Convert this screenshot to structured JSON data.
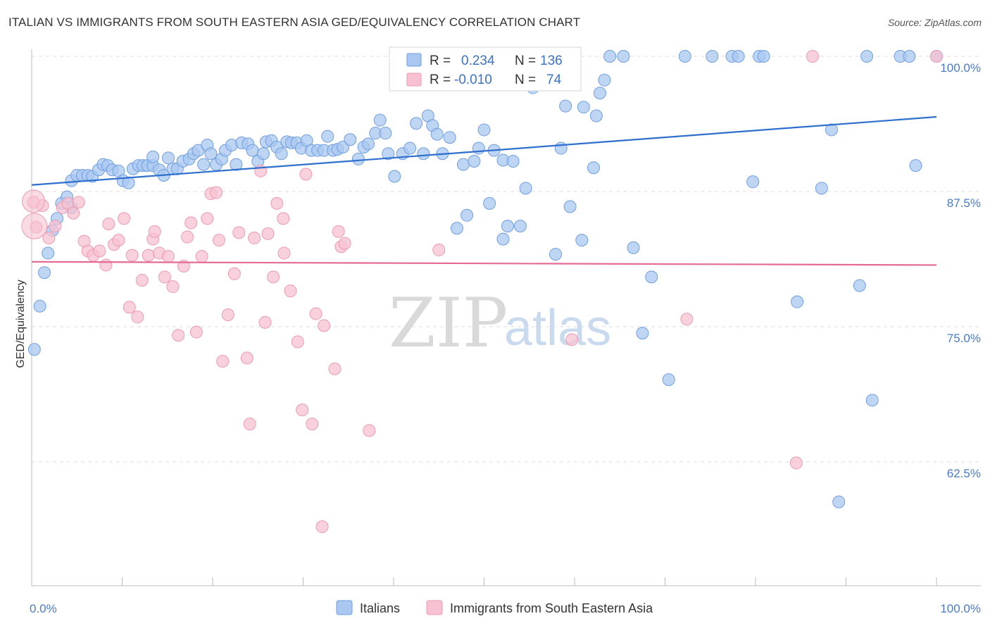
{
  "title": "ITALIAN VS IMMIGRANTS FROM SOUTH EASTERN ASIA GED/EQUIVALENCY CORRELATION CHART",
  "source": "Source: ZipAtlas.com",
  "watermark": {
    "zip": "ZIP",
    "atlas": "atlas"
  },
  "colors": {
    "italians_fill": "#a9c7f0",
    "italians_stroke": "#6f9fe0",
    "italians_line": "#2f6fce",
    "sea_fill": "#f7c1d1",
    "sea_stroke": "#ec9ab3",
    "sea_line": "#e56b95",
    "grid": "#dddddd",
    "axis_label": "#4a7cc7"
  },
  "legend_box": {
    "rows": [
      {
        "r_label": "R =",
        "r_value": "0.234",
        "n_label": "N =",
        "n_value": "136"
      },
      {
        "r_label": "R =",
        "r_value": "-0.010",
        "n_label": "N =",
        "n_value": "74"
      }
    ]
  },
  "chart_data": {
    "type": "scatter",
    "title": "ITALIAN VS IMMIGRANTS FROM SOUTH EASTERN ASIA GED/EQUIVALENCY CORRELATION CHART",
    "xlabel": "",
    "ylabel": "GED/Equivalency",
    "xlim": [
      0,
      100
    ],
    "ylim": [
      50,
      101.5
    ],
    "x_tick_labels": [
      "0.0%",
      "100.0%"
    ],
    "y_ticks": [
      62.5,
      75.0,
      87.5,
      100.0
    ],
    "y_tick_labels": [
      "62.5%",
      "75.0%",
      "87.5%",
      "100.0%"
    ],
    "grid": "horizontal dashed",
    "legend_position": "bottom",
    "series": [
      {
        "name": "Italians",
        "trend": {
          "x0": 0,
          "y0": 88.1,
          "x1": 100,
          "y1": 94.4
        },
        "points": [
          [
            0.3,
            72.9
          ],
          [
            0.9,
            76.9
          ],
          [
            1.4,
            80.0
          ],
          [
            1.8,
            81.8
          ],
          [
            2.3,
            83.9
          ],
          [
            2.8,
            85.0
          ],
          [
            3.3,
            86.4
          ],
          [
            3.9,
            87.0
          ],
          [
            4.4,
            86.0
          ],
          [
            4.4,
            88.5
          ],
          [
            5.0,
            89.0
          ],
          [
            5.6,
            89.0
          ],
          [
            6.2,
            89.0
          ],
          [
            6.7,
            88.9
          ],
          [
            7.4,
            89.5
          ],
          [
            7.9,
            90.0
          ],
          [
            8.4,
            89.9
          ],
          [
            8.9,
            89.5
          ],
          [
            9.6,
            89.4
          ],
          [
            10.1,
            88.5
          ],
          [
            10.7,
            88.3
          ],
          [
            11.2,
            89.6
          ],
          [
            11.8,
            89.9
          ],
          [
            12.3,
            89.9
          ],
          [
            12.8,
            89.9
          ],
          [
            13.4,
            89.9
          ],
          [
            13.4,
            90.7
          ],
          [
            14.1,
            89.5
          ],
          [
            14.6,
            89.0
          ],
          [
            15.1,
            90.6
          ],
          [
            15.6,
            89.6
          ],
          [
            16.1,
            89.6
          ],
          [
            16.7,
            90.3
          ],
          [
            17.4,
            90.5
          ],
          [
            17.9,
            91.0
          ],
          [
            18.4,
            91.3
          ],
          [
            19.0,
            90.0
          ],
          [
            19.4,
            91.8
          ],
          [
            19.8,
            91.0
          ],
          [
            20.4,
            90.0
          ],
          [
            21.0,
            90.5
          ],
          [
            21.4,
            91.3
          ],
          [
            22.1,
            91.8
          ],
          [
            22.6,
            90.0
          ],
          [
            23.2,
            92.0
          ],
          [
            23.9,
            91.9
          ],
          [
            24.4,
            91.3
          ],
          [
            25.0,
            90.3
          ],
          [
            25.6,
            91.0
          ],
          [
            25.9,
            92.1
          ],
          [
            26.5,
            92.2
          ],
          [
            27.1,
            91.6
          ],
          [
            27.6,
            91.0
          ],
          [
            28.2,
            92.1
          ],
          [
            28.7,
            92.0
          ],
          [
            29.3,
            92.0
          ],
          [
            29.8,
            91.5
          ],
          [
            30.4,
            92.2
          ],
          [
            30.9,
            91.3
          ],
          [
            31.6,
            91.3
          ],
          [
            32.3,
            91.3
          ],
          [
            32.7,
            92.6
          ],
          [
            33.3,
            91.3
          ],
          [
            33.8,
            91.4
          ],
          [
            34.4,
            91.6
          ],
          [
            35.2,
            92.3
          ],
          [
            36.1,
            90.5
          ],
          [
            36.7,
            91.6
          ],
          [
            37.2,
            91.9
          ],
          [
            38.0,
            92.9
          ],
          [
            38.5,
            94.1
          ],
          [
            39.1,
            92.9
          ],
          [
            39.4,
            91.0
          ],
          [
            40.1,
            88.9
          ],
          [
            41.0,
            91.0
          ],
          [
            41.8,
            91.5
          ],
          [
            42.5,
            93.8
          ],
          [
            43.3,
            91.0
          ],
          [
            43.8,
            94.5
          ],
          [
            44.3,
            93.6
          ],
          [
            44.8,
            92.8
          ],
          [
            45.4,
            91.0
          ],
          [
            46.2,
            92.5
          ],
          [
            47.0,
            84.1
          ],
          [
            47.7,
            90.0
          ],
          [
            48.1,
            85.3
          ],
          [
            48.9,
            90.3
          ],
          [
            49.4,
            91.5
          ],
          [
            50.0,
            93.2
          ],
          [
            50.6,
            86.4
          ],
          [
            51.1,
            91.3
          ],
          [
            52.1,
            90.4
          ],
          [
            52.1,
            83.1
          ],
          [
            52.6,
            84.3
          ],
          [
            53.2,
            90.3
          ],
          [
            54.0,
            84.3
          ],
          [
            54.6,
            87.8
          ],
          [
            55.4,
            97.1
          ],
          [
            56.5,
            100.0
          ],
          [
            57.9,
            81.7
          ],
          [
            58.5,
            91.5
          ],
          [
            59.0,
            95.4
          ],
          [
            59.5,
            86.1
          ],
          [
            60.8,
            83.0
          ],
          [
            61.0,
            95.3
          ],
          [
            62.1,
            89.7
          ],
          [
            62.4,
            94.5
          ],
          [
            62.8,
            96.6
          ],
          [
            63.3,
            97.8
          ],
          [
            63.9,
            100.0
          ],
          [
            65.4,
            100.0
          ],
          [
            66.5,
            82.3
          ],
          [
            67.5,
            74.4
          ],
          [
            68.5,
            79.6
          ],
          [
            70.4,
            70.1
          ],
          [
            72.2,
            100.0
          ],
          [
            75.2,
            100.0
          ],
          [
            77.4,
            100.0
          ],
          [
            78.1,
            100.0
          ],
          [
            79.7,
            88.4
          ],
          [
            80.4,
            100.0
          ],
          [
            80.9,
            100.0
          ],
          [
            84.6,
            77.3
          ],
          [
            87.3,
            87.8
          ],
          [
            88.4,
            93.2
          ],
          [
            89.2,
            58.8
          ],
          [
            91.5,
            78.8
          ],
          [
            92.3,
            100.0
          ],
          [
            92.9,
            68.2
          ],
          [
            96.0,
            100.0
          ],
          [
            97.0,
            100.0
          ],
          [
            97.7,
            89.9
          ],
          [
            100.0,
            100.0
          ]
        ]
      },
      {
        "name": "Immigrants from South Eastern Asia",
        "trend": {
          "x0": 0,
          "y0": 81.0,
          "x1": 100,
          "y1": 80.7
        },
        "points": [
          [
            0.2,
            86.5
          ],
          [
            0.5,
            84.2
          ],
          [
            1.2,
            86.2
          ],
          [
            1.9,
            83.2
          ],
          [
            2.6,
            84.3
          ],
          [
            3.4,
            86.0
          ],
          [
            4.0,
            86.4
          ],
          [
            4.6,
            85.5
          ],
          [
            5.2,
            86.5
          ],
          [
            5.8,
            82.9
          ],
          [
            6.2,
            82.0
          ],
          [
            6.8,
            81.6
          ],
          [
            7.5,
            82.0
          ],
          [
            8.2,
            80.7
          ],
          [
            8.5,
            84.5
          ],
          [
            9.1,
            82.6
          ],
          [
            9.6,
            83.0
          ],
          [
            10.2,
            85.0
          ],
          [
            10.8,
            76.8
          ],
          [
            11.1,
            81.6
          ],
          [
            11.7,
            75.9
          ],
          [
            12.2,
            79.3
          ],
          [
            12.9,
            81.6
          ],
          [
            13.4,
            83.1
          ],
          [
            13.6,
            83.8
          ],
          [
            14.1,
            81.8
          ],
          [
            14.7,
            79.6
          ],
          [
            15.1,
            81.5
          ],
          [
            15.6,
            78.7
          ],
          [
            16.2,
            74.2
          ],
          [
            16.8,
            80.6
          ],
          [
            17.2,
            83.3
          ],
          [
            17.6,
            84.6
          ],
          [
            18.2,
            74.5
          ],
          [
            18.8,
            81.5
          ],
          [
            19.4,
            85.0
          ],
          [
            19.8,
            87.3
          ],
          [
            20.4,
            87.4
          ],
          [
            20.7,
            83.0
          ],
          [
            21.1,
            71.8
          ],
          [
            21.7,
            76.1
          ],
          [
            22.4,
            79.9
          ],
          [
            22.9,
            83.7
          ],
          [
            23.8,
            72.1
          ],
          [
            24.1,
            66.0
          ],
          [
            24.6,
            83.2
          ],
          [
            25.3,
            89.4
          ],
          [
            25.8,
            75.4
          ],
          [
            26.1,
            83.6
          ],
          [
            26.7,
            79.6
          ],
          [
            27.1,
            86.4
          ],
          [
            27.8,
            85.0
          ],
          [
            27.9,
            81.8
          ],
          [
            28.6,
            78.3
          ],
          [
            29.4,
            73.6
          ],
          [
            29.9,
            67.3
          ],
          [
            30.3,
            89.1
          ],
          [
            31.0,
            66.0
          ],
          [
            31.4,
            76.2
          ],
          [
            32.1,
            56.5
          ],
          [
            32.3,
            75.1
          ],
          [
            33.5,
            71.1
          ],
          [
            33.9,
            83.8
          ],
          [
            34.2,
            82.4
          ],
          [
            34.6,
            82.7
          ],
          [
            37.3,
            65.4
          ],
          [
            45.0,
            82.1
          ],
          [
            49.2,
            100.0
          ],
          [
            55.4,
            100.0
          ],
          [
            59.7,
            73.8
          ],
          [
            72.4,
            75.7
          ],
          [
            84.5,
            62.4
          ],
          [
            86.3,
            100.0
          ],
          [
            100.0,
            100.0
          ]
        ]
      }
    ]
  },
  "legend_bottom": [
    {
      "label": "Italians"
    },
    {
      "label": "Immigrants from South Eastern Asia"
    }
  ]
}
